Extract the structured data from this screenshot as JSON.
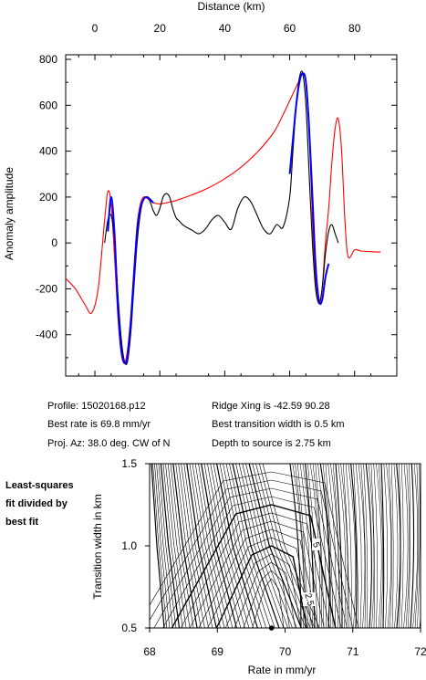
{
  "chart_data": [
    {
      "type": "line",
      "xlabel": "Distance (km)",
      "ylabel": "Anomaly amplitude",
      "xlim": [
        -9,
        93
      ],
      "ylim": [
        -580,
        820
      ],
      "x_ticks": [
        0,
        20,
        40,
        60,
        80
      ],
      "y_ticks": [
        -400,
        -200,
        0,
        200,
        400,
        600,
        800
      ],
      "grid": false,
      "series": [
        {
          "color": "#ff0000",
          "x": [
            -9,
            -6,
            -3,
            -1,
            1,
            3,
            4,
            5,
            6,
            7,
            8,
            9,
            10,
            11,
            12,
            13,
            14,
            15,
            16,
            17,
            18,
            20,
            22,
            25,
            30,
            35,
            40,
            45,
            50,
            55,
            58,
            60,
            62,
            63,
            64,
            65,
            66,
            67,
            68,
            69,
            70,
            71,
            72,
            73,
            74,
            75,
            76,
            77,
            78,
            80,
            82,
            85,
            88
          ],
          "y": [
            -155,
            -200,
            -270,
            -305,
            -200,
            100,
            225,
            170,
            -50,
            -300,
            -470,
            -525,
            -470,
            -330,
            -120,
            80,
            170,
            200,
            195,
            185,
            175,
            170,
            175,
            185,
            210,
            240,
            280,
            330,
            395,
            480,
            560,
            620,
            680,
            710,
            735,
            700,
            500,
            100,
            -180,
            -265,
            -200,
            0,
            150,
            350,
            500,
            540,
            400,
            100,
            -60,
            -30,
            -35,
            -38,
            -40
          ]
        },
        {
          "color": "#000000",
          "x": [
            3,
            4,
            5,
            6,
            7,
            8,
            9,
            10,
            11,
            12,
            13,
            14,
            15,
            16,
            17,
            18,
            19,
            20,
            21,
            22,
            23,
            24,
            25,
            26,
            27,
            28,
            30,
            32,
            34,
            36,
            38,
            40,
            42,
            44,
            46,
            48,
            50,
            52,
            54,
            56,
            58,
            60,
            61,
            62,
            63,
            64,
            65,
            66,
            67,
            68,
            69,
            70,
            71,
            72,
            73,
            74,
            75
          ],
          "y": [
            0,
            100,
            120,
            20,
            -200,
            -400,
            -510,
            -520,
            -400,
            -200,
            0,
            130,
            190,
            200,
            180,
            140,
            120,
            150,
            200,
            215,
            200,
            150,
            110,
            95,
            80,
            70,
            55,
            40,
            60,
            100,
            120,
            90,
            60,
            150,
            200,
            180,
            120,
            60,
            40,
            80,
            70,
            200,
            400,
            600,
            720,
            740,
            600,
            300,
            0,
            -200,
            -260,
            -200,
            -50,
            50,
            80,
            40,
            0
          ]
        },
        {
          "color": "#0000ff",
          "x": [
            4,
            5,
            6,
            7,
            8,
            9,
            10,
            11,
            12,
            13,
            14,
            15,
            16,
            17,
            18,
            60,
            61,
            62,
            63,
            64,
            65,
            66,
            67,
            68,
            69,
            70,
            71,
            72
          ],
          "y": [
            50,
            200,
            50,
            -250,
            -450,
            -520,
            -500,
            -350,
            -150,
            50,
            150,
            190,
            200,
            190,
            175,
            300,
            450,
            600,
            700,
            740,
            700,
            500,
            200,
            -100,
            -250,
            -250,
            -150,
            -90
          ]
        }
      ]
    },
    {
      "type": "contour",
      "xlabel": "Rate in mm/yr",
      "ylabel": "Transition width in km",
      "xlim": [
        68,
        72
      ],
      "ylim": [
        0.5,
        1.5
      ],
      "x_ticks": [
        68,
        69,
        70,
        71,
        72
      ],
      "y_ticks": [
        0.5,
        1.0,
        1.5
      ],
      "contour_labels": [
        "5",
        "2.5"
      ],
      "best_fit": {
        "rate": 69.8,
        "transition_width": 0.5
      }
    }
  ],
  "info": {
    "profile": "Profile: 15020168.p12",
    "best_rate": "Best rate is 69.8 mm/yr",
    "proj_az": "Proj. Az: 38.0 deg. CW of N",
    "ridge_xing": "Ridge Xing is -42.59 90.28",
    "best_transition": "Best transition width is 0.5 km",
    "depth": "Depth to source is   2.75 km"
  },
  "side_note": [
    "Least-squares",
    "fit divided by",
    "best fit"
  ]
}
